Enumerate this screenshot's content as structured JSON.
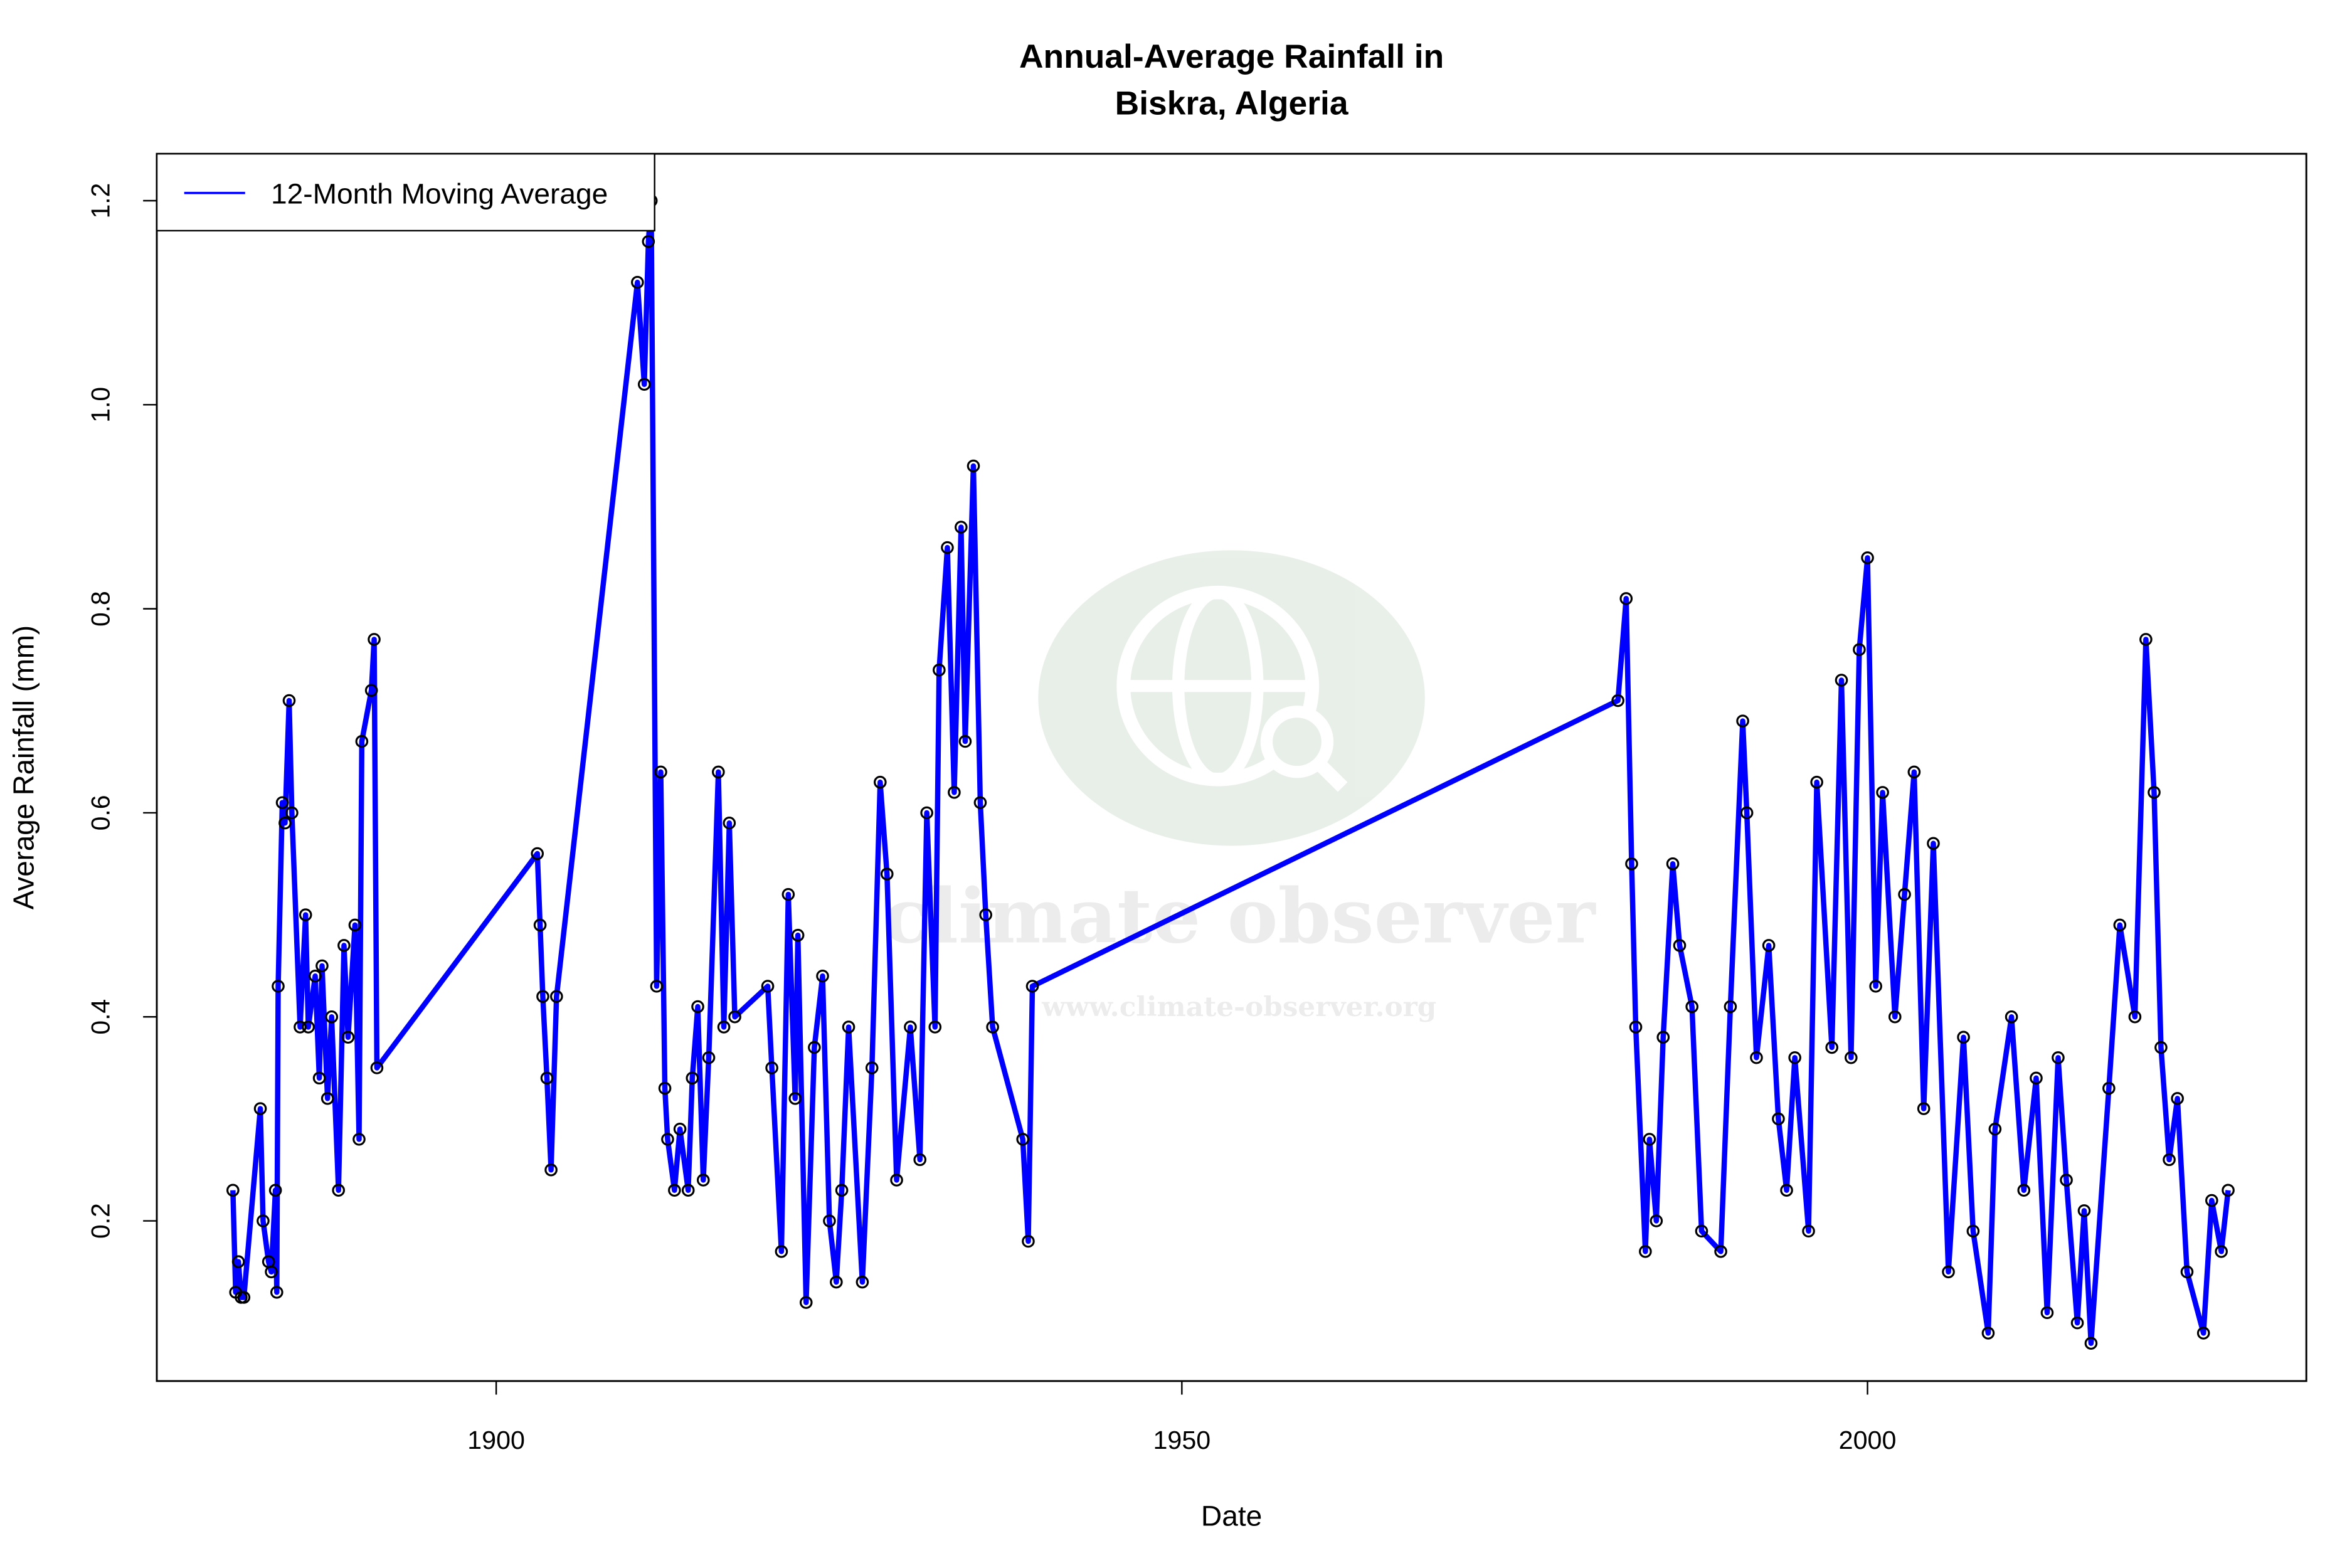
{
  "chart_data": {
    "type": "line",
    "title": [
      "Annual-Average Rainfall in",
      "Biskra, Algeria"
    ],
    "x_label": "Date",
    "y_label": "Average Rainfall (mm)",
    "watermark": [
      "climate observer",
      "www.climate-observer.org"
    ],
    "xlim": [
      1875.25,
      2032
    ],
    "ylim": [
      0.043,
      1.246
    ],
    "xticks": [
      1900,
      1950,
      2000
    ],
    "yticks": [
      0.2,
      0.4,
      0.6,
      0.8,
      {
        "value": 1,
        "label": "1.0"
      },
      1.2
    ],
    "legend": "top-left",
    "point_color": "#000000",
    "x": [
      1880.8,
      1881.0,
      1881.2,
      1881.4,
      1881.6,
      1882.8,
      1883.0,
      1883.4,
      1883.6,
      1883.9,
      1884.0,
      1884.1,
      1884.4,
      1884.6,
      1884.9,
      1885.1,
      1885.7,
      1886.1,
      1886.3,
      1886.8,
      1887.1,
      1887.3,
      1887.7,
      1888.0,
      1888.5,
      1888.9,
      1889.2,
      1889.7,
      1890.0,
      1890.2,
      1890.9,
      1891.1,
      1891.3,
      1903.0,
      1903.2,
      1903.4,
      1903.7,
      1904.0,
      1904.4,
      1910.3,
      1910.8,
      1911.1,
      1911.3,
      1911.7,
      1912.0,
      1912.3,
      1912.5,
      1913.0,
      1913.4,
      1914.0,
      1914.3,
      1914.7,
      1915.1,
      1915.5,
      1916.2,
      1916.6,
      1917.0,
      1917.4,
      1919.8,
      1920.1,
      1920.8,
      1921.3,
      1921.8,
      1922.0,
      1922.6,
      1923.2,
      1923.8,
      1924.3,
      1924.8,
      1925.2,
      1925.7,
      1926.7,
      1927.4,
      1928.0,
      1928.5,
      1929.2,
      1930.2,
      1930.9,
      1931.4,
      1932.0,
      1932.3,
      1932.9,
      1933.4,
      1933.9,
      1934.2,
      1934.8,
      1935.3,
      1935.7,
      1936.2,
      1938.4,
      1938.8,
      1939.1,
      1981.8,
      1982.4,
      1982.8,
      1983.1,
      1983.8,
      1984.1,
      1984.6,
      1985.1,
      1985.8,
      1986.3,
      1987.2,
      1987.9,
      1989.3,
      1990.0,
      1990.9,
      1991.2,
      1991.9,
      1992.8,
      1993.5,
      1994.1,
      1994.7,
      1995.7,
      1996.3,
      1997.4,
      1998.1,
      1998.8,
      1999.4,
      2000.0,
      2000.6,
      2001.1,
      2002.0,
      2002.7,
      2003.4,
      2004.1,
      2004.8,
      2005.9,
      2007.0,
      2007.7,
      2008.8,
      2009.3,
      2010.5,
      2011.4,
      2012.3,
      2013.1,
      2013.9,
      2014.5,
      2015.3,
      2015.8,
      2016.3,
      2017.6,
      2018.4,
      2019.5,
      2020.3,
      2020.9,
      2021.4,
      2022.0,
      2022.6,
      2023.3,
      2024.5,
      2025.1,
      2025.8,
      2026.3
    ],
    "series": [
      {
        "name": "12-Month Moving Average",
        "color": "#0000ff",
        "values": [
          0.23,
          0.13,
          0.16,
          0.125,
          0.125,
          0.31,
          0.2,
          0.16,
          0.15,
          0.23,
          0.13,
          0.43,
          0.61,
          0.59,
          0.71,
          0.6,
          0.39,
          0.5,
          0.39,
          0.44,
          0.34,
          0.45,
          0.32,
          0.4,
          0.23,
          0.47,
          0.38,
          0.49,
          0.28,
          0.67,
          0.72,
          0.77,
          0.35,
          0.56,
          0.49,
          0.42,
          0.34,
          0.25,
          0.42,
          1.12,
          1.02,
          1.16,
          1.2,
          0.43,
          0.64,
          0.33,
          0.28,
          0.23,
          0.29,
          0.23,
          0.34,
          0.41,
          0.24,
          0.36,
          0.64,
          0.39,
          0.59,
          0.4,
          0.43,
          0.35,
          0.17,
          0.52,
          0.32,
          0.48,
          0.12,
          0.37,
          0.44,
          0.2,
          0.14,
          0.23,
          0.39,
          0.14,
          0.35,
          0.63,
          0.54,
          0.24,
          0.39,
          0.26,
          0.6,
          0.39,
          0.74,
          0.86,
          0.62,
          0.88,
          0.67,
          0.94,
          0.61,
          0.5,
          0.39,
          0.28,
          0.18,
          0.43,
          0.71,
          0.81,
          0.55,
          0.39,
          0.17,
          0.28,
          0.2,
          0.38,
          0.55,
          0.47,
          0.41,
          0.19,
          0.17,
          0.41,
          0.69,
          0.6,
          0.36,
          0.47,
          0.3,
          0.23,
          0.36,
          0.19,
          0.63,
          0.37,
          0.73,
          0.36,
          0.76,
          0.85,
          0.43,
          0.62,
          0.4,
          0.52,
          0.64,
          0.31,
          0.57,
          0.15,
          0.38,
          0.19,
          0.09,
          0.29,
          0.4,
          0.23,
          0.34,
          0.11,
          0.36,
          0.24,
          0.1,
          0.21,
          0.08,
          0.33,
          0.49,
          0.4,
          0.77,
          0.62,
          0.37,
          0.26,
          0.32,
          0.15,
          0.09,
          0.22,
          0.17,
          0.23
        ]
      }
    ]
  }
}
